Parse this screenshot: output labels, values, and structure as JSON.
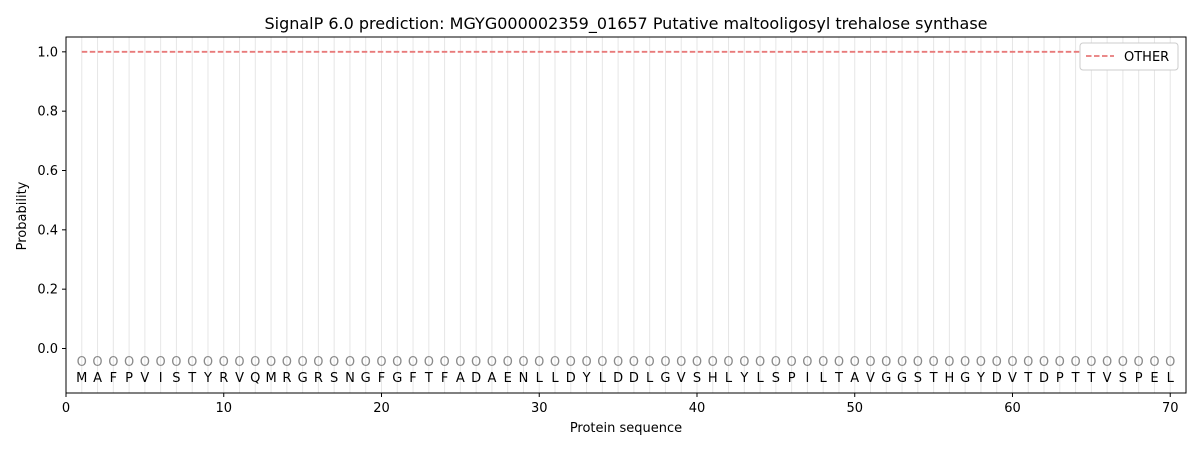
{
  "chart_data": {
    "type": "line",
    "title": "SignalP 6.0 prediction: MGYG000002359_01657 Putative maltooligosyl trehalose synthase",
    "xlabel": "Protein sequence",
    "ylabel": "Probability",
    "xlim": [
      0,
      71
    ],
    "ylim": [
      -0.15,
      1.05
    ],
    "xticks": [
      0,
      10,
      20,
      30,
      40,
      50,
      60,
      70
    ],
    "yticks": [
      0.0,
      0.2,
      0.4,
      0.6,
      0.8,
      1.0
    ],
    "xtick_labels": [
      "0",
      "10",
      "20",
      "30",
      "40",
      "50",
      "60",
      "70"
    ],
    "ytick_labels": [
      "0.0",
      "0.2",
      "0.4",
      "0.6",
      "0.8",
      "1.0"
    ],
    "sequence": [
      "M",
      "A",
      "F",
      "P",
      "V",
      "I",
      "S",
      "T",
      "Y",
      "R",
      "V",
      "Q",
      "M",
      "R",
      "G",
      "R",
      "S",
      "N",
      "G",
      "F",
      "G",
      "F",
      "T",
      "F",
      "A",
      "D",
      "A",
      "E",
      "N",
      "L",
      "L",
      "D",
      "Y",
      "L",
      "D",
      "D",
      "L",
      "G",
      "V",
      "S",
      "H",
      "L",
      "Y",
      "L",
      "S",
      "P",
      "I",
      "L",
      "T",
      "A",
      "V",
      "G",
      "G",
      "S",
      "T",
      "H",
      "G",
      "Y",
      "D",
      "V",
      "T",
      "D",
      "P",
      "T",
      "T",
      "V",
      "S",
      "P",
      "E",
      "L"
    ],
    "state_labels": [
      "O",
      "O",
      "O",
      "O",
      "O",
      "O",
      "O",
      "O",
      "O",
      "O",
      "O",
      "O",
      "O",
      "O",
      "O",
      "O",
      "O",
      "O",
      "O",
      "O",
      "O",
      "O",
      "O",
      "O",
      "O",
      "O",
      "O",
      "O",
      "O",
      "O",
      "O",
      "O",
      "O",
      "O",
      "O",
      "O",
      "O",
      "O",
      "O",
      "O",
      "O",
      "O",
      "O",
      "O",
      "O",
      "O",
      "O",
      "O",
      "O",
      "O",
      "O",
      "O",
      "O",
      "O",
      "O",
      "O",
      "O",
      "O",
      "O",
      "O",
      "O",
      "O",
      "O",
      "O",
      "O",
      "O",
      "O",
      "O",
      "O",
      "O"
    ],
    "series": [
      {
        "name": "OTHER",
        "color": "#e87a7a",
        "style": "dashed",
        "x_start": 1,
        "x_end": 70,
        "value": 1.0
      }
    ],
    "legend_position": "top-right",
    "grid": "vertical lines at each residue"
  }
}
